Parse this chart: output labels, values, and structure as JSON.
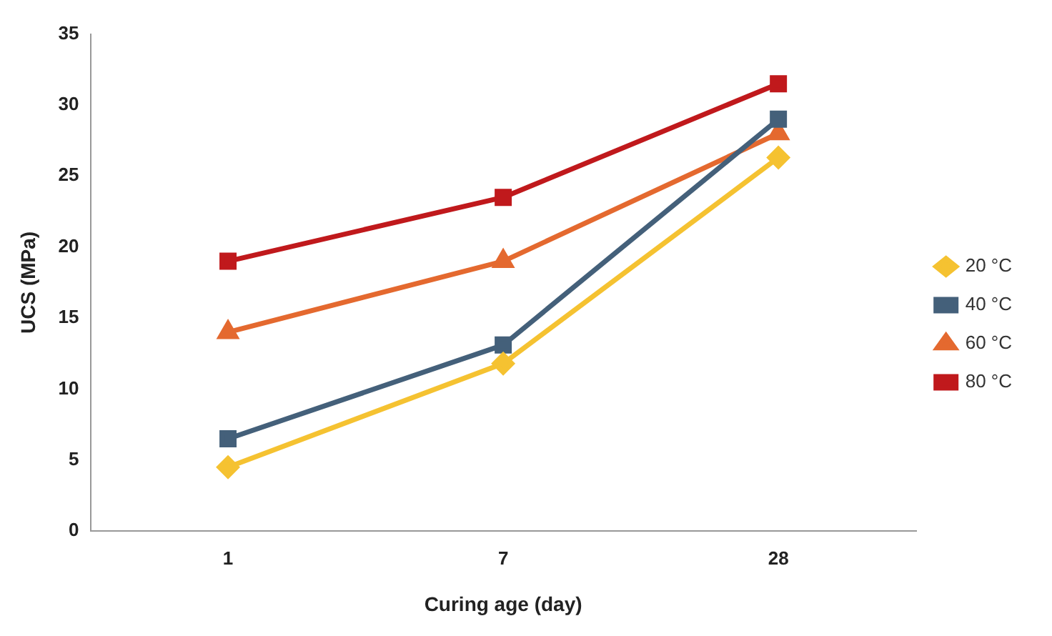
{
  "chart_data": {
    "type": "line",
    "xlabel": "Curing age (day)",
    "ylabel": "UCS (MPa)",
    "categories": [
      "1",
      "7",
      "28"
    ],
    "ylim": [
      0,
      35
    ],
    "yticks": [
      0,
      5,
      10,
      15,
      20,
      25,
      30,
      35
    ],
    "grid": false,
    "legend": "right",
    "series": [
      {
        "name": "20 °C",
        "color": "#f5c231",
        "marker": "diamond",
        "values": [
          4.5,
          11.8,
          26.3
        ]
      },
      {
        "name": "40 °C",
        "color": "#44607a",
        "marker": "square",
        "values": [
          6.5,
          13.1,
          29
        ]
      },
      {
        "name": "60 °C",
        "color": "#e4692f",
        "marker": "triangle",
        "values": [
          14,
          19,
          28
        ]
      },
      {
        "name": "80 °C",
        "color": "#c0191c",
        "marker": "square",
        "values": [
          19,
          23.5,
          31.5
        ]
      }
    ]
  }
}
